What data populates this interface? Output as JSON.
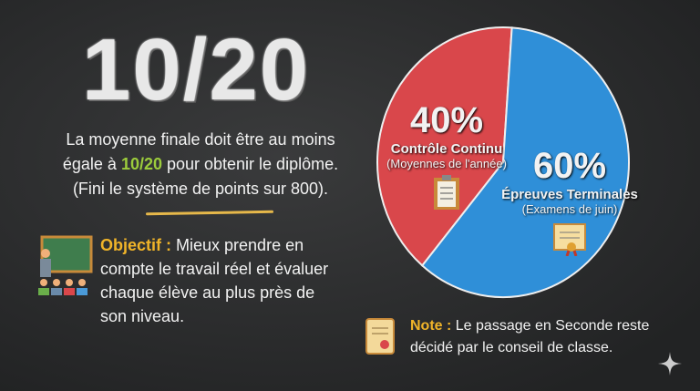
{
  "headline": "10/20",
  "intro": {
    "line1": "La moyenne finale doit être au moins",
    "line2_pre": "égale à ",
    "line2_highlight": "10/20",
    "line2_post": " pour obtenir le diplôme.",
    "line3": "(Fini le système de points sur 800)."
  },
  "objective": {
    "label": "Objectif :",
    "text": " Mieux prendre en compte le travail réel et évaluer chaque élève au plus près de son niveau."
  },
  "note": {
    "label": "Note :",
    "text": " Le passage en Seconde reste décidé par le conseil de classe."
  },
  "colors": {
    "red": "#d9474b",
    "blue": "#2f8fd8",
    "highlight_green": "#9ccc3c",
    "gold": "#f0b429"
  },
  "chart_data": {
    "type": "pie",
    "slices": [
      {
        "label": "40%",
        "value": 40,
        "name": "Contrôle Continu",
        "sub": "(Moyennes de l'année)",
        "color": "#d9474b",
        "icon": "clipboard-icon"
      },
      {
        "label": "60%",
        "value": 60,
        "name": "Épreuves Terminales",
        "sub": "(Examens de juin)",
        "color": "#2f8fd8",
        "icon": "diploma-icon"
      }
    ]
  }
}
